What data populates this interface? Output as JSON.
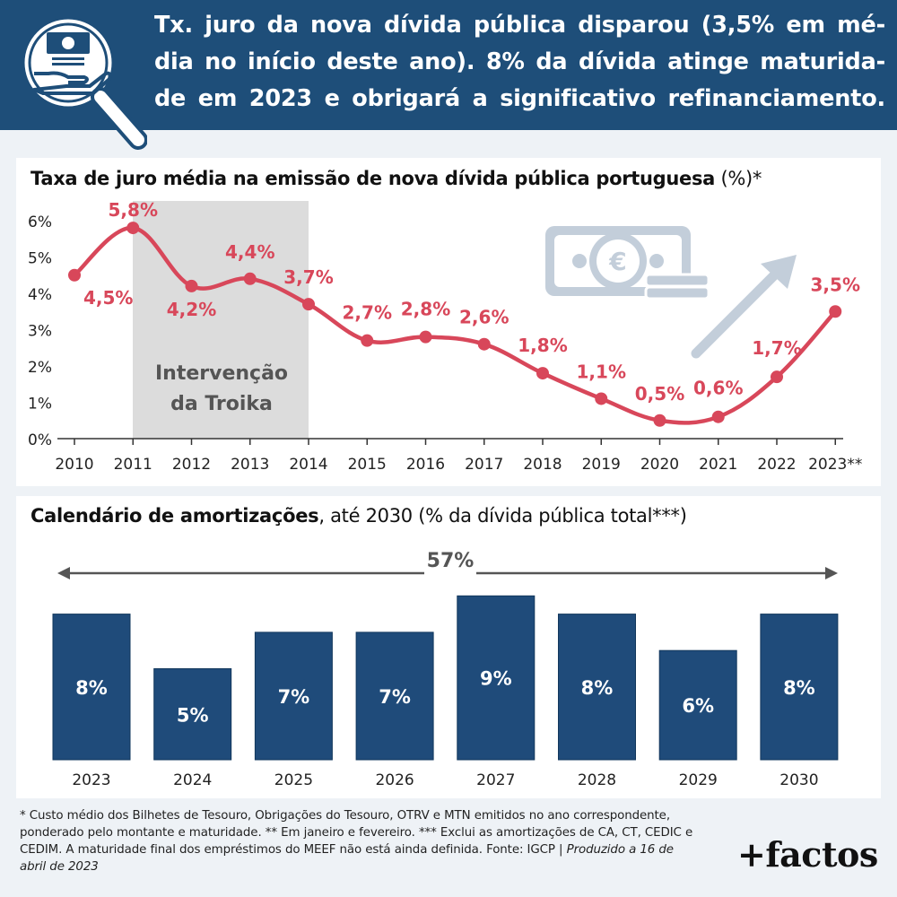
{
  "header": {
    "lines": [
      "Tx. juro da nova dívida pública disparou (3,5% em mé-",
      "dia no início deste ano). 8% da dívida atinge maturida-",
      "de em 2023 e obrigará a significativo refinanciamento."
    ],
    "icon": "money-hand-magnifier-icon"
  },
  "chart1": {
    "title_bold": "Taxa de juro média na emissão de nova dívida pública portuguesa",
    "title_rest": " (%)*",
    "shaded_label_line1": "Intervenção",
    "shaded_label_line2": "da Troika",
    "icons": [
      "euro-banknote-icon",
      "up-arrow-icon"
    ]
  },
  "chart2": {
    "title_bold": "Calendário de amortizações",
    "title_rest": ", até 2030 (% da dívida pública total***)",
    "total_label": "57%"
  },
  "colors": {
    "header_bg": "#1e4e79",
    "line": "#d8475a",
    "bar": "#1f4b7a",
    "shade": "#dcdcdc",
    "decor": "#c3ceda"
  },
  "chart_data": [
    {
      "type": "line",
      "title": "Taxa de juro média na emissão de nova dívida pública portuguesa (%)*",
      "x": [
        "2010",
        "2011",
        "2012",
        "2013",
        "2014",
        "2015",
        "2016",
        "2017",
        "2018",
        "2019",
        "2020",
        "2021",
        "2022",
        "2023**"
      ],
      "values": [
        4.5,
        5.8,
        4.2,
        4.4,
        3.7,
        2.7,
        2.8,
        2.6,
        1.8,
        1.1,
        0.5,
        0.6,
        1.7,
        3.5
      ],
      "value_labels": [
        "4,5%",
        "5,8%",
        "4,2%",
        "4,4%",
        "3,7%",
        "2,7%",
        "2,8%",
        "2,6%",
        "1,8%",
        "1,1%",
        "0,5%",
        "0,6%",
        "1,7%",
        "3,5%"
      ],
      "yticks": [
        "0%",
        "1%",
        "2%",
        "3%",
        "4%",
        "5%",
        "6%"
      ],
      "ylim": [
        0,
        6
      ],
      "shaded_range": [
        "2011",
        "2014"
      ],
      "grid": false
    },
    {
      "type": "bar",
      "title": "Calendário de amortizações, até 2030 (% da dívida pública total***)",
      "categories": [
        "2023",
        "2024",
        "2025",
        "2026",
        "2027",
        "2028",
        "2029",
        "2030"
      ],
      "values": [
        8,
        5,
        7,
        7,
        9,
        8,
        6,
        8
      ],
      "value_labels": [
        "8%",
        "5%",
        "7%",
        "7%",
        "9%",
        "8%",
        "6%",
        "8%"
      ],
      "total": "57%"
    }
  ],
  "footnote": {
    "text": "* Custo médio dos Bilhetes de Tesouro, Obrigações do Tesouro, OTRV e MTN emitidos no ano correspondente, ponderado pelo montante e maturidade. ** Em janeiro e fevereiro. *** Exclui as amortizações de CA, CT, CEDIC e CEDIM. A maturidade final dos empréstimos do MEEF não está ainda definida. Fonte: IGCP | ",
    "produced": "Produzido a 16 de abril de 2023"
  },
  "logo": "+factos"
}
